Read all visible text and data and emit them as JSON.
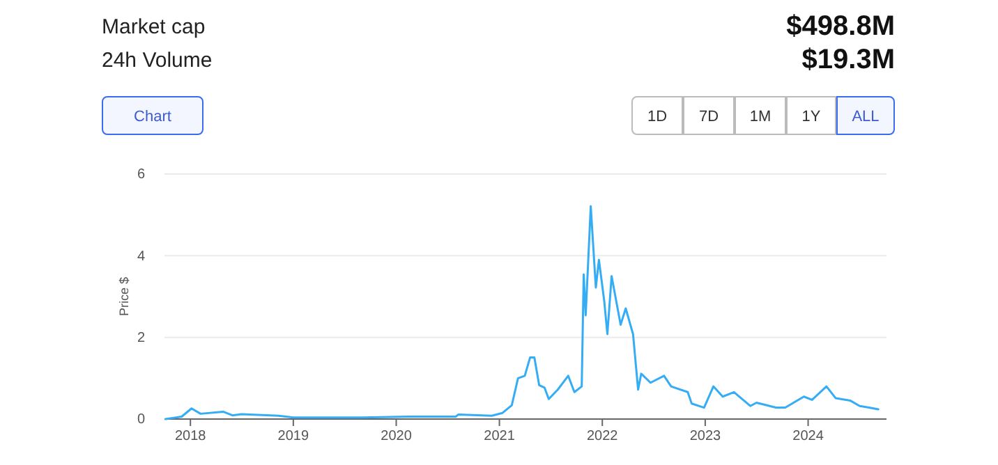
{
  "chart_data": {
    "type": "line",
    "ylabel": "Price $",
    "annotations": [
      "Market cap",
      "$498.8M",
      "24h Volume",
      "$19.3M",
      "Chart",
      "1D",
      "7D",
      "1M",
      "1Y",
      "ALL"
    ],
    "xlim": [
      "2017-10-01",
      "2024-10-05"
    ],
    "xticks": [
      {
        "value": "2018-01-01",
        "label": "2018"
      },
      {
        "value": "2019-01-01",
        "label": "2019"
      },
      {
        "value": "2020-01-01",
        "label": "2020"
      },
      {
        "value": "2021-01-01",
        "label": "2021"
      },
      {
        "value": "2022-01-01",
        "label": "2022"
      },
      {
        "value": "2023-01-01",
        "label": "2023"
      },
      {
        "value": "2024-01-01",
        "label": "2024"
      }
    ],
    "ylim": [
      0,
      6
    ],
    "yticks": [
      0,
      2,
      4,
      6
    ],
    "grid": "y",
    "marker": "none",
    "line_style": "solid",
    "series": [
      {
        "color": "#35adf5",
        "x": [
          "2017-10-05",
          "2017-12-01",
          "2018-01-05",
          "2018-02-06",
          "2018-04-27",
          "2018-05-30",
          "2018-07-01",
          "2018-11-10",
          "2019-01-01",
          "2019-09-05",
          "2020-02-14",
          "2020-07-30",
          "2020-08-08",
          "2020-12-05",
          "2021-01-12",
          "2021-02-14",
          "2021-03-08",
          "2021-04-01",
          "2021-04-20",
          "2021-05-05",
          "2021-05-22",
          "2021-06-10",
          "2021-06-25",
          "2021-07-27",
          "2021-09-02",
          "2021-09-24",
          "2021-10-20",
          "2021-10-27",
          "2021-11-03",
          "2021-11-21",
          "2021-12-09",
          "2021-12-20",
          "2022-01-08",
          "2022-01-19",
          "2022-02-03",
          "2022-03-07",
          "2022-03-25",
          "2022-04-20",
          "2022-05-08",
          "2022-05-19",
          "2022-06-21",
          "2022-08-08",
          "2022-09-02",
          "2022-10-31",
          "2022-11-14",
          "2022-12-28",
          "2023-01-30",
          "2023-03-04",
          "2023-04-13",
          "2023-06-10",
          "2023-07-02",
          "2023-09-09",
          "2023-10-12",
          "2023-12-17",
          "2024-01-15",
          "2024-03-06",
          "2024-04-08",
          "2024-05-30",
          "2024-07-02",
          "2024-08-04",
          "2024-09-06"
        ],
        "values": [
          0,
          0.06,
          0.26,
          0.13,
          0.18,
          0.09,
          0.12,
          0.08,
          0.04,
          0.04,
          0.06,
          0.06,
          0.11,
          0.08,
          0.15,
          0.34,
          1.0,
          1.06,
          1.51,
          1.51,
          0.83,
          0.77,
          0.49,
          0.72,
          1.06,
          0.66,
          0.8,
          3.54,
          2.54,
          5.21,
          3.22,
          3.9,
          2.88,
          2.08,
          3.5,
          2.31,
          2.71,
          2.08,
          0.72,
          1.11,
          0.89,
          1.06,
          0.8,
          0.66,
          0.38,
          0.28,
          0.8,
          0.55,
          0.66,
          0.32,
          0.4,
          0.28,
          0.28,
          0.55,
          0.47,
          0.8,
          0.51,
          0.45,
          0.32,
          0.28,
          0.24
        ]
      }
    ]
  }
}
